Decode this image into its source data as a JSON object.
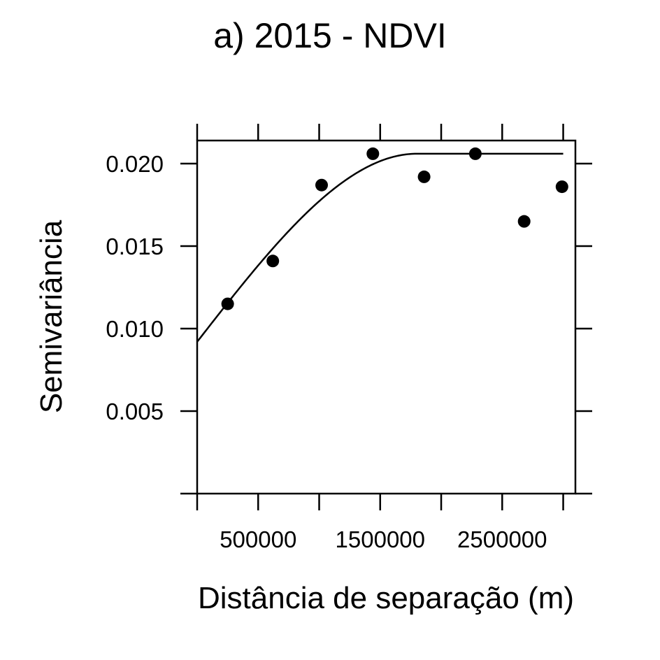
{
  "chart_data": {
    "type": "scatter",
    "title": "a) 2015 - NDVI",
    "xlabel": "Distância de separação (m)",
    "ylabel": "Semivariância",
    "xlim": [
      0,
      3100000
    ],
    "ylim": [
      0,
      0.0214
    ],
    "x_ticks": [
      0,
      500000,
      1000000,
      1500000,
      2000000,
      2500000,
      3000000
    ],
    "x_tick_labels": [
      "",
      "500000",
      "",
      "1500000",
      "",
      "2500000",
      ""
    ],
    "y_ticks": [
      0.005,
      0.01,
      0.015,
      0.02
    ],
    "y_tick_labels": [
      "0.005",
      "0.010",
      "0.015",
      "0.020"
    ],
    "series": [
      {
        "kind": "points",
        "x": [
          250000,
          620000,
          1020000,
          1440000,
          1860000,
          2280000,
          2680000,
          2990000
        ],
        "y": [
          0.0115,
          0.0141,
          0.0187,
          0.0206,
          0.0192,
          0.0206,
          0.0165,
          0.0186
        ]
      },
      {
        "kind": "fitted-model",
        "model": "spherical",
        "nugget": 0.0092,
        "sill": 0.0206,
        "range": 1800000,
        "x_max": 3000000
      }
    ],
    "grid": false,
    "legend": "none"
  }
}
